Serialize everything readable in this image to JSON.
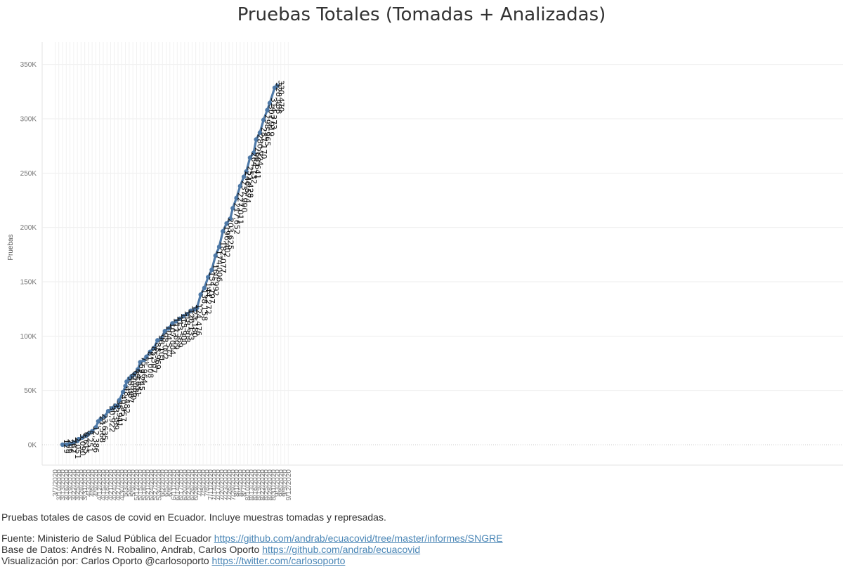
{
  "chart_data": {
    "type": "line",
    "title": "Pruebas Totales (Tomadas + Analizadas)",
    "ylabel": "Pruebas",
    "xlabel": "",
    "ylim": [
      0,
      380000
    ],
    "y_ticks": [
      0,
      50000,
      100000,
      150000,
      200000,
      250000,
      300000,
      350000
    ],
    "y_tick_labels": [
      "0K",
      "50K",
      "100K",
      "150K",
      "200K",
      "250K",
      "300K",
      "350K"
    ],
    "x_ticks": [
      "3/7/2020",
      "3/10/2020",
      "3/13/2020",
      "3/16/2020",
      "3/19/2020",
      "3/22/2020",
      "3/25/2020",
      "3/28/2020",
      "3/31/2020",
      "4/3/2020",
      "4/6/2020",
      "4/9/2020",
      "4/12/2020",
      "4/15/2020",
      "4/18/2020",
      "4/21/2020",
      "4/24/2020",
      "4/27/2020",
      "4/30/2020",
      "5/3/2020",
      "5/6/2020",
      "5/9/2020",
      "5/12/2020",
      "5/15/2020",
      "5/18/2020",
      "5/21/2020",
      "5/24/2020",
      "5/27/2020",
      "5/30/2020",
      "6/2/2020",
      "6/5/2020",
      "6/8/2020",
      "6/11/2020",
      "6/14/2020",
      "6/17/2020",
      "6/20/2020",
      "6/23/2020",
      "6/26/2020",
      "6/29/2020",
      "7/2/2020",
      "7/5/2020",
      "7/8/2020",
      "7/11/2020",
      "7/14/2020",
      "7/17/2020",
      "7/20/2020",
      "7/23/2020",
      "7/26/2020",
      "7/29/2020",
      "8/1/2020",
      "8/4/2020",
      "8/7/2020",
      "8/10/2020",
      "8/13/2020",
      "8/16/2020",
      "8/19/2020",
      "8/22/2020",
      "8/25/2020",
      "8/28/2020",
      "8/31/2020",
      "9/3/2020",
      "9/6/2020",
      "9/9/2020",
      "9/12/2020"
    ],
    "x_range": [
      "2020-03-07",
      "2020-09-14"
    ],
    "grid": true,
    "line_color": "#4e79a7",
    "series": [
      {
        "name": "",
        "points": [
          {
            "x": "2020-03-13",
            "y": 129,
            "label": "129"
          },
          {
            "x": "2020-03-16",
            "y": 206,
            "label": "206"
          },
          {
            "x": "2020-03-19",
            "y": 762,
            "label": "762"
          },
          {
            "x": "2020-03-22",
            "y": 2051,
            "label": "2,051"
          },
          {
            "x": "2020-03-25",
            "y": 3500
          },
          {
            "x": "2020-03-26",
            "y": 5090,
            "label": "5,090"
          },
          {
            "x": "2020-03-29",
            "y": 6615,
            "label": "6,615"
          },
          {
            "x": "2020-04-01",
            "y": 8251,
            "label": "8,251"
          },
          {
            "x": "2020-04-03",
            "y": 10000
          },
          {
            "x": "2020-04-06",
            "y": 12386,
            "label": "12,386"
          },
          {
            "x": "2020-04-09",
            "y": 16000
          },
          {
            "x": "2020-04-11",
            "y": 21568,
            "label": "21,568"
          },
          {
            "x": "2020-04-13",
            "y": 23635,
            "label": "23,635"
          },
          {
            "x": "2020-04-16",
            "y": 26000
          },
          {
            "x": "2020-04-19",
            "y": 30922,
            "label": "30,922"
          },
          {
            "x": "2020-04-22",
            "y": 33389,
            "label": "33,389"
          },
          {
            "x": "2020-04-24",
            "y": 34500
          },
          {
            "x": "2020-04-25",
            "y": 35941,
            "label": "35,941"
          },
          {
            "x": "2020-04-27",
            "y": 35700
          },
          {
            "x": "2020-04-28",
            "y": 40957,
            "label": "40,957"
          },
          {
            "x": "2020-05-01",
            "y": 48482,
            "label": "48,482"
          },
          {
            "x": "2020-05-03",
            "y": 54000
          },
          {
            "x": "2020-05-04",
            "y": 58087,
            "label": "58,087"
          },
          {
            "x": "2020-05-06",
            "y": 60820,
            "label": "60,820"
          },
          {
            "x": "2020-05-08",
            "y": 63085,
            "label": "63,085"
          },
          {
            "x": "2020-05-10",
            "y": 64651,
            "label": "64,651"
          },
          {
            "x": "2020-05-13",
            "y": 69245,
            "label": "69,245"
          },
          {
            "x": "2020-05-15",
            "y": 75964,
            "label": "75,964"
          },
          {
            "x": "2020-05-18",
            "y": 78000
          },
          {
            "x": "2020-05-20",
            "y": 81008,
            "label": "81,008"
          },
          {
            "x": "2020-05-23",
            "y": 85507,
            "label": "85,507"
          },
          {
            "x": "2020-05-26",
            "y": 88969,
            "label": "88,969"
          },
          {
            "x": "2020-05-29",
            "y": 96101,
            "label": "96,101"
          },
          {
            "x": "2020-06-01",
            "y": 98002,
            "label": "98,002"
          },
          {
            "x": "2020-06-04",
            "y": 104577,
            "label": "104,577"
          },
          {
            "x": "2020-06-07",
            "y": 107004,
            "label": "107,004"
          },
          {
            "x": "2020-06-10",
            "y": 111609,
            "label": "111,609"
          },
          {
            "x": "2020-06-13",
            "y": 113569,
            "label": "113,569"
          },
          {
            "x": "2020-06-16",
            "y": 115900,
            "label": "115,900"
          },
          {
            "x": "2020-06-19",
            "y": 118308,
            "label": "118,308"
          },
          {
            "x": "2020-06-22",
            "y": 120133,
            "label": "120,133"
          },
          {
            "x": "2020-06-25",
            "y": 123180,
            "label": "123,180"
          },
          {
            "x": "2020-06-28",
            "y": 124476,
            "label": "124,476"
          },
          {
            "x": "2020-06-30",
            "y": 126000
          },
          {
            "x": "2020-07-03",
            "y": 138158,
            "label": "138,158"
          },
          {
            "x": "2020-07-06",
            "y": 144272,
            "label": "144,272"
          },
          {
            "x": "2020-07-09",
            "y": 154197,
            "label": "154,197"
          },
          {
            "x": "2020-07-12",
            "y": 160992,
            "label": "160,992"
          },
          {
            "x": "2020-07-15",
            "y": 174006,
            "label": "174,006"
          },
          {
            "x": "2020-07-18",
            "y": 182077,
            "label": "182,077"
          },
          {
            "x": "2020-07-21",
            "y": 196402,
            "label": "196,402"
          },
          {
            "x": "2020-07-24",
            "y": 203625,
            "label": "203,625"
          },
          {
            "x": "2020-07-27",
            "y": 208000
          },
          {
            "x": "2020-07-29",
            "y": 217652,
            "label": "217,652"
          },
          {
            "x": "2020-08-01",
            "y": 227011,
            "label": "227,011"
          },
          {
            "x": "2020-08-04",
            "y": 237990,
            "label": "237,990"
          },
          {
            "x": "2020-08-07",
            "y": 246574,
            "label": "246,574"
          },
          {
            "x": "2020-08-09",
            "y": 251428,
            "label": "251,428"
          },
          {
            "x": "2020-08-12",
            "y": 264132,
            "label": "264,132"
          },
          {
            "x": "2020-08-15",
            "y": 268641,
            "label": "268,641"
          },
          {
            "x": "2020-08-17",
            "y": 280924,
            "label": "280,924"
          },
          {
            "x": "2020-08-20",
            "y": 287170,
            "label": "287,170"
          },
          {
            "x": "2020-08-23",
            "y": 298965,
            "label": "298,965"
          },
          {
            "x": "2020-08-26",
            "y": 307919,
            "label": "307,919"
          },
          {
            "x": "2020-08-28",
            "y": 314373,
            "label": "314,373"
          },
          {
            "x": "2020-09-01",
            "y": 328488,
            "label": "328,488"
          },
          {
            "x": "2020-09-03",
            "y": 330470,
            "label": "330,470"
          }
        ]
      }
    ]
  },
  "footer": {
    "description": "Pruebas totales de casos de covid en Ecuador. Incluye muestras tomadas y represadas.",
    "source_prefix": "Fuente: Ministerio de Salud Pública del Ecuador ",
    "source_link": "https://github.com/andrab/ecuacovid/tree/master/informes/SNGRE",
    "database_prefix": "Base de Datos: Andrés N. Robalino, Andrab, Carlos Oporto ",
    "database_link": "https://github.com/andrab/ecuacovid",
    "viz_prefix": "Visualización por: Carlos Oporto @carlosoporto ",
    "viz_link": "https://twitter.com/carlosoporto"
  }
}
